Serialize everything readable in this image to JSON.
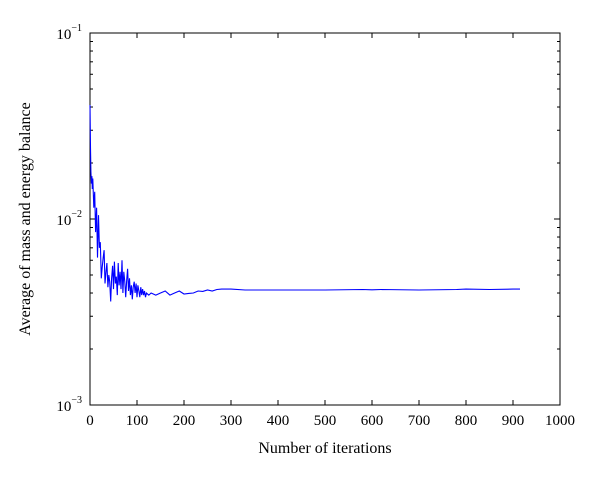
{
  "chart_data": {
    "type": "line",
    "title": "",
    "xlabel": "Number of iterations",
    "ylabel": "Average of mass and energy balance",
    "xlim": [
      0,
      1000
    ],
    "ylim": [
      0.001,
      0.1
    ],
    "yscale": "log",
    "grid": false,
    "x_ticks": [
      0,
      100,
      200,
      300,
      400,
      500,
      600,
      700,
      800,
      900,
      1000
    ],
    "x_tick_labels": [
      "0",
      "100",
      "200",
      "300",
      "400",
      "500",
      "600",
      "700",
      "800",
      "900",
      "1000"
    ],
    "y_ticks": [
      {
        "value": 0.1,
        "base": "10",
        "exp": "−1"
      },
      {
        "value": 0.01,
        "base": "10",
        "exp": "−2"
      },
      {
        "value": 0.001,
        "base": "10",
        "exp": "−3"
      }
    ],
    "series": [
      {
        "color": "#0000ff",
        "x": [
          0,
          1,
          2,
          3,
          4,
          5,
          6,
          8,
          10,
          12,
          14,
          16,
          18,
          20,
          22,
          24,
          26,
          28,
          30,
          32,
          34,
          36,
          38,
          40,
          42,
          44,
          46,
          48,
          50,
          52,
          54,
          56,
          58,
          60,
          62,
          64,
          66,
          68,
          70,
          72,
          74,
          76,
          78,
          80,
          82,
          84,
          86,
          88,
          90,
          92,
          94,
          96,
          98,
          100,
          102,
          104,
          106,
          108,
          110,
          112,
          114,
          116,
          118,
          120,
          125,
          130,
          140,
          150,
          160,
          170,
          180,
          190,
          200,
          210,
          220,
          230,
          240,
          250,
          260,
          270,
          280,
          300,
          330,
          400,
          500,
          580,
          600,
          620,
          700,
          780,
          800,
          850,
          900,
          915
        ],
        "y": [
          0.041,
          0.024,
          0.018,
          0.0155,
          0.017,
          0.0145,
          0.0165,
          0.0115,
          0.014,
          0.0085,
          0.0115,
          0.0062,
          0.0105,
          0.007,
          0.0075,
          0.0048,
          0.0055,
          0.0062,
          0.0068,
          0.0045,
          0.0052,
          0.0058,
          0.0043,
          0.005,
          0.0046,
          0.0036,
          0.0048,
          0.0056,
          0.0042,
          0.0059,
          0.0045,
          0.0049,
          0.0039,
          0.0058,
          0.0044,
          0.0052,
          0.0042,
          0.006,
          0.004,
          0.0052,
          0.0046,
          0.0038,
          0.0047,
          0.0054,
          0.0041,
          0.0048,
          0.0039,
          0.0044,
          0.0037,
          0.0043,
          0.0046,
          0.004,
          0.0045,
          0.0038,
          0.0044,
          0.0041,
          0.0038,
          0.0043,
          0.0039,
          0.0042,
          0.0039,
          0.0041,
          0.0038,
          0.004,
          0.0039,
          0.004,
          0.0039,
          0.004,
          0.0041,
          0.0039,
          0.004,
          0.0041,
          0.00395,
          0.00398,
          0.004,
          0.0041,
          0.00408,
          0.00415,
          0.0041,
          0.00418,
          0.0042,
          0.0042,
          0.00415,
          0.00415,
          0.00415,
          0.00418,
          0.00416,
          0.00418,
          0.00415,
          0.00418,
          0.0042,
          0.00418,
          0.0042,
          0.0042
        ]
      }
    ]
  }
}
